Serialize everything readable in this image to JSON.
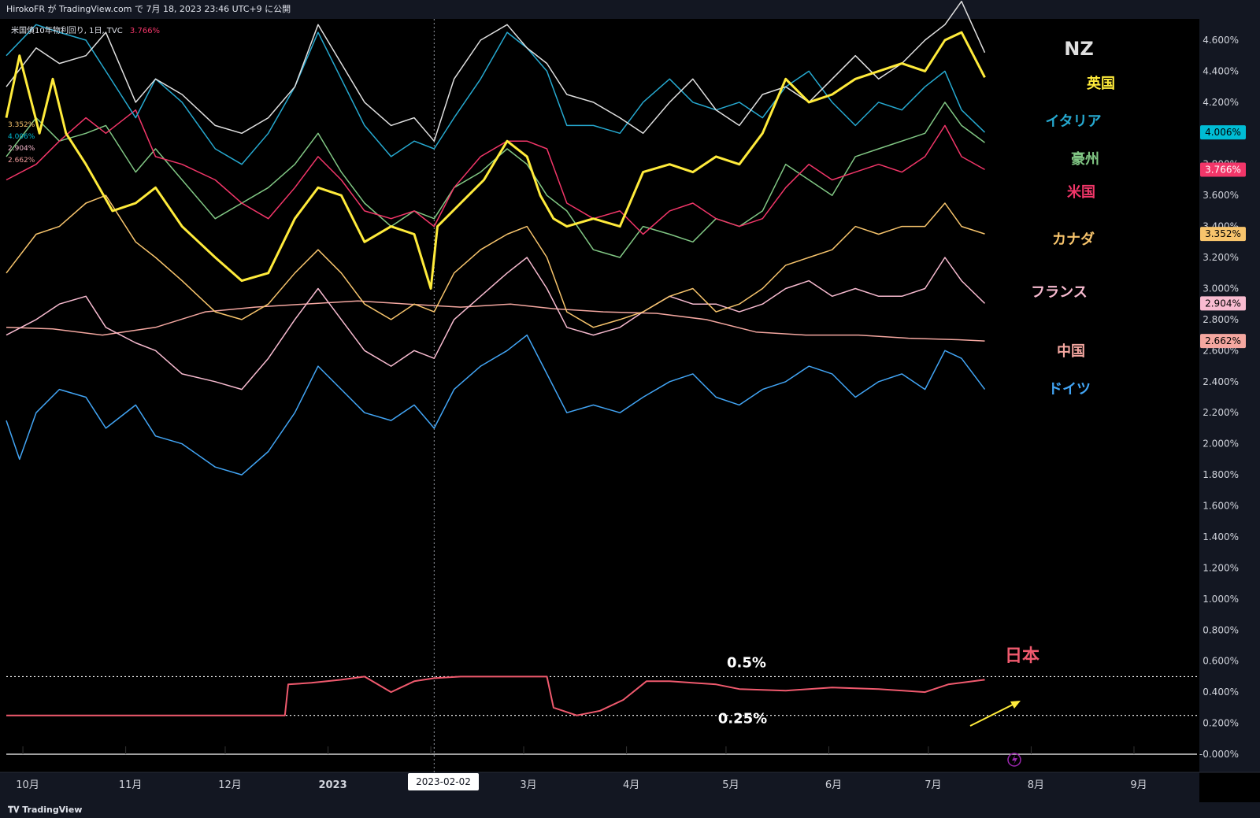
{
  "header": {
    "publisher": "HirokoFR が TradingView.com で 7月 18, 2023 23:46 UTC+9 に公開"
  },
  "legend": {
    "symbol": "米国債10年物利回り, 1日, TVC",
    "value": "3.766%"
  },
  "mini_legend": [
    {
      "text": "3.352%",
      "color": "#f7c46c"
    },
    {
      "text": "4.006%",
      "color": "#00bcd4"
    },
    {
      "text": "2.904%",
      "color": "#f8bbd0"
    },
    {
      "text": "2.662%",
      "color": "#ef9a9a"
    }
  ],
  "crosshair_date": "2023-02-02",
  "footer": {
    "brand": "TradingView"
  },
  "colors": {
    "nz": "#e0e0e0",
    "uk": "#ffeb3b",
    "italy": "#26a9d0",
    "australia": "#81c784",
    "us": "#f23669",
    "canada": "#f7c46c",
    "france": "#f8bbd0",
    "china": "#f4a7a0",
    "germany": "#42a5f5",
    "japan": "#f05a6e"
  },
  "chart_data": {
    "type": "line",
    "title": "米国債10年物利回り, 1日, TVC",
    "xlabel": "",
    "ylabel": "",
    "ylim": [
      -0.05,
      4.85
    ],
    "x_tick_labels": [
      "10月",
      "11月",
      "12月",
      "2023",
      "2月",
      "3月",
      "4月",
      "5月",
      "6月",
      "7月",
      "8月",
      "9月"
    ],
    "x_range": [
      "2022-09-26",
      "2023-09-20"
    ],
    "y_ticks": [
      -0.0,
      0.2,
      0.4,
      0.6,
      0.8,
      1.0,
      1.2,
      1.4,
      1.6,
      1.8,
      2.0,
      2.2,
      2.4,
      2.6,
      2.8,
      3.0,
      3.2,
      3.4,
      3.6,
      3.8,
      4.0,
      4.2,
      4.4,
      4.6
    ],
    "y_tick_labels": [
      "-0.000%",
      "0.200%",
      "0.400%",
      "0.600%",
      "0.800%",
      "1.000%",
      "1.200%",
      "1.400%",
      "1.600%",
      "1.800%",
      "2.000%",
      "2.200%",
      "2.400%",
      "2.600%",
      "2.800%",
      "3.000%",
      "3.200%",
      "3.400%",
      "3.600%",
      "3.800%",
      "4.000%",
      "4.200%",
      "4.400%",
      "4.600%"
    ],
    "price_tags": [
      {
        "label": "4.006%",
        "value": 4.006,
        "bg": "#00bcd4",
        "fg": "#000"
      },
      {
        "label": "3.766%",
        "value": 3.766,
        "bg": "#f23669",
        "fg": "#fff"
      },
      {
        "label": "3.352%",
        "value": 3.352,
        "bg": "#f7c46c",
        "fg": "#000"
      },
      {
        "label": "2.904%",
        "value": 2.904,
        "bg": "#f8bbd0",
        "fg": "#000"
      },
      {
        "label": "2.662%",
        "value": 2.662,
        "bg": "#f4a7a0",
        "fg": "#000"
      }
    ],
    "annotations": {
      "level_05": {
        "text": "0.5%",
        "value": 0.5
      },
      "level_025": {
        "text": "0.25%",
        "value": 0.25
      }
    },
    "series": [
      {
        "key": "nz",
        "name": "NZ",
        "color": "#e0e0e0",
        "width": 1.5,
        "dates": [
          "2022-09-26",
          "2022-10-05",
          "2022-10-12",
          "2022-10-20",
          "2022-10-26",
          "2022-11-04",
          "2022-11-10",
          "2022-11-18",
          "2022-11-28",
          "2022-12-06",
          "2022-12-14",
          "2022-12-22",
          "2022-12-29",
          "2023-01-05",
          "2023-01-12",
          "2023-01-20",
          "2023-01-27",
          "2023-02-02",
          "2023-02-08",
          "2023-02-16",
          "2023-02-24",
          "2023-03-02",
          "2023-03-08",
          "2023-03-14",
          "2023-03-22",
          "2023-03-30",
          "2023-04-06",
          "2023-04-14",
          "2023-04-21",
          "2023-04-28",
          "2023-05-05",
          "2023-05-12",
          "2023-05-19",
          "2023-05-26",
          "2023-06-02",
          "2023-06-09",
          "2023-06-16",
          "2023-06-23",
          "2023-06-30",
          "2023-07-06",
          "2023-07-11",
          "2023-07-18"
        ],
        "values": [
          4.3,
          4.55,
          4.45,
          4.5,
          4.65,
          4.2,
          4.35,
          4.25,
          4.05,
          4.0,
          4.1,
          4.3,
          4.7,
          4.45,
          4.2,
          4.05,
          4.1,
          3.95,
          4.35,
          4.6,
          4.7,
          4.55,
          4.45,
          4.25,
          4.2,
          4.1,
          4.0,
          4.2,
          4.35,
          4.15,
          4.05,
          4.25,
          4.3,
          4.2,
          4.35,
          4.5,
          4.35,
          4.45,
          4.6,
          4.7,
          4.85,
          4.52
        ]
      },
      {
        "key": "uk",
        "name": "英国",
        "color": "#ffeb3b",
        "width": 3,
        "dates": [
          "2022-09-26",
          "2022-09-30",
          "2022-10-06",
          "2022-10-10",
          "2022-10-14",
          "2022-10-20",
          "2022-10-28",
          "2022-11-04",
          "2022-11-10",
          "2022-11-18",
          "2022-11-28",
          "2022-12-06",
          "2022-12-14",
          "2022-12-22",
          "2022-12-29",
          "2023-01-05",
          "2023-01-12",
          "2023-01-20",
          "2023-01-27",
          "2023-02-01",
          "2023-02-03",
          "2023-02-10",
          "2023-02-17",
          "2023-02-24",
          "2023-03-02",
          "2023-03-06",
          "2023-03-10",
          "2023-03-14",
          "2023-03-22",
          "2023-03-30",
          "2023-04-06",
          "2023-04-14",
          "2023-04-21",
          "2023-04-28",
          "2023-05-05",
          "2023-05-12",
          "2023-05-19",
          "2023-05-26",
          "2023-06-02",
          "2023-06-09",
          "2023-06-16",
          "2023-06-23",
          "2023-06-30",
          "2023-07-06",
          "2023-07-11",
          "2023-07-18"
        ],
        "values": [
          4.1,
          4.5,
          4.0,
          4.35,
          4.0,
          3.8,
          3.5,
          3.55,
          3.65,
          3.4,
          3.2,
          3.05,
          3.1,
          3.45,
          3.65,
          3.6,
          3.3,
          3.4,
          3.35,
          3.0,
          3.4,
          3.55,
          3.7,
          3.95,
          3.85,
          3.6,
          3.45,
          3.4,
          3.45,
          3.4,
          3.75,
          3.8,
          3.75,
          3.85,
          3.8,
          4.0,
          4.35,
          4.2,
          4.25,
          4.35,
          4.4,
          4.45,
          4.4,
          4.6,
          4.65,
          4.36
        ]
      },
      {
        "key": "italy",
        "name": "イタリア",
        "color": "#26a9d0",
        "width": 1.5,
        "dates": [
          "2022-09-26",
          "2022-10-05",
          "2022-10-12",
          "2022-10-20",
          "2022-10-26",
          "2022-11-04",
          "2022-11-10",
          "2022-11-18",
          "2022-11-28",
          "2022-12-06",
          "2022-12-14",
          "2022-12-22",
          "2022-12-29",
          "2023-01-05",
          "2023-01-12",
          "2023-01-20",
          "2023-01-27",
          "2023-02-02",
          "2023-02-08",
          "2023-02-16",
          "2023-02-24",
          "2023-03-02",
          "2023-03-08",
          "2023-03-14",
          "2023-03-22",
          "2023-03-30",
          "2023-04-06",
          "2023-04-14",
          "2023-04-21",
          "2023-04-28",
          "2023-05-05",
          "2023-05-12",
          "2023-05-19",
          "2023-05-26",
          "2023-06-02",
          "2023-06-09",
          "2023-06-16",
          "2023-06-23",
          "2023-06-30",
          "2023-07-06",
          "2023-07-11",
          "2023-07-18"
        ],
        "values": [
          4.5,
          4.7,
          4.65,
          4.6,
          4.4,
          4.1,
          4.35,
          4.2,
          3.9,
          3.8,
          4.0,
          4.3,
          4.65,
          4.35,
          4.05,
          3.85,
          3.95,
          3.9,
          4.1,
          4.35,
          4.65,
          4.55,
          4.4,
          4.05,
          4.05,
          4.0,
          4.2,
          4.35,
          4.2,
          4.15,
          4.2,
          4.1,
          4.3,
          4.4,
          4.2,
          4.05,
          4.2,
          4.15,
          4.3,
          4.4,
          4.15,
          4.006
        ]
      },
      {
        "key": "australia",
        "name": "豪州",
        "color": "#81c784",
        "width": 1.5,
        "dates": [
          "2022-09-26",
          "2022-10-05",
          "2022-10-12",
          "2022-10-20",
          "2022-10-26",
          "2022-11-04",
          "2022-11-10",
          "2022-11-18",
          "2022-11-28",
          "2022-12-06",
          "2022-12-14",
          "2022-12-22",
          "2022-12-29",
          "2023-01-05",
          "2023-01-12",
          "2023-01-20",
          "2023-01-27",
          "2023-02-02",
          "2023-02-08",
          "2023-02-16",
          "2023-02-24",
          "2023-03-02",
          "2023-03-08",
          "2023-03-14",
          "2023-03-22",
          "2023-03-30",
          "2023-04-06",
          "2023-04-14",
          "2023-04-21",
          "2023-04-28",
          "2023-05-05",
          "2023-05-12",
          "2023-05-19",
          "2023-05-26",
          "2023-06-02",
          "2023-06-09",
          "2023-06-16",
          "2023-06-23",
          "2023-06-30",
          "2023-07-06",
          "2023-07-11",
          "2023-07-18"
        ],
        "values": [
          3.85,
          4.1,
          3.95,
          4.0,
          4.05,
          3.75,
          3.9,
          3.7,
          3.45,
          3.55,
          3.65,
          3.8,
          4.0,
          3.75,
          3.55,
          3.4,
          3.5,
          3.45,
          3.65,
          3.75,
          3.9,
          3.8,
          3.6,
          3.5,
          3.25,
          3.2,
          3.4,
          3.35,
          3.3,
          3.45,
          3.4,
          3.5,
          3.8,
          3.7,
          3.6,
          3.85,
          3.9,
          3.95,
          4.0,
          4.2,
          4.05,
          3.94
        ]
      },
      {
        "key": "us",
        "name": "米国",
        "color": "#f23669",
        "width": 1.5,
        "dates": [
          "2022-09-26",
          "2022-10-05",
          "2022-10-12",
          "2022-10-20",
          "2022-10-26",
          "2022-11-04",
          "2022-11-10",
          "2022-11-18",
          "2022-11-28",
          "2022-12-06",
          "2022-12-14",
          "2022-12-22",
          "2022-12-29",
          "2023-01-05",
          "2023-01-12",
          "2023-01-20",
          "2023-01-27",
          "2023-02-02",
          "2023-02-08",
          "2023-02-16",
          "2023-02-24",
          "2023-03-02",
          "2023-03-08",
          "2023-03-14",
          "2023-03-22",
          "2023-03-30",
          "2023-04-06",
          "2023-04-14",
          "2023-04-21",
          "2023-04-28",
          "2023-05-05",
          "2023-05-12",
          "2023-05-19",
          "2023-05-26",
          "2023-06-02",
          "2023-06-09",
          "2023-06-16",
          "2023-06-23",
          "2023-06-30",
          "2023-07-06",
          "2023-07-11",
          "2023-07-18"
        ],
        "values": [
          3.7,
          3.8,
          3.95,
          4.1,
          4.0,
          4.15,
          3.85,
          3.8,
          3.7,
          3.55,
          3.45,
          3.65,
          3.85,
          3.7,
          3.5,
          3.45,
          3.5,
          3.4,
          3.65,
          3.85,
          3.95,
          3.95,
          3.9,
          3.55,
          3.45,
          3.5,
          3.35,
          3.5,
          3.55,
          3.45,
          3.4,
          3.45,
          3.65,
          3.8,
          3.7,
          3.75,
          3.8,
          3.75,
          3.85,
          4.05,
          3.85,
          3.766
        ]
      },
      {
        "key": "canada",
        "name": "カナダ",
        "color": "#f7c46c",
        "width": 1.5,
        "dates": [
          "2022-09-26",
          "2022-10-05",
          "2022-10-12",
          "2022-10-20",
          "2022-10-26",
          "2022-11-04",
          "2022-11-10",
          "2022-11-18",
          "2022-11-28",
          "2022-12-06",
          "2022-12-14",
          "2022-12-22",
          "2022-12-29",
          "2023-01-05",
          "2023-01-12",
          "2023-01-20",
          "2023-01-27",
          "2023-02-02",
          "2023-02-08",
          "2023-02-16",
          "2023-02-24",
          "2023-03-02",
          "2023-03-08",
          "2023-03-14",
          "2023-03-22",
          "2023-03-30",
          "2023-04-06",
          "2023-04-14",
          "2023-04-21",
          "2023-04-28",
          "2023-05-05",
          "2023-05-12",
          "2023-05-19",
          "2023-05-26",
          "2023-06-02",
          "2023-06-09",
          "2023-06-16",
          "2023-06-23",
          "2023-06-30",
          "2023-07-06",
          "2023-07-11",
          "2023-07-18"
        ],
        "values": [
          3.1,
          3.35,
          3.4,
          3.55,
          3.6,
          3.3,
          3.2,
          3.05,
          2.85,
          2.8,
          2.9,
          3.1,
          3.25,
          3.1,
          2.9,
          2.8,
          2.9,
          2.85,
          3.1,
          3.25,
          3.35,
          3.4,
          3.2,
          2.85,
          2.75,
          2.8,
          2.85,
          2.95,
          3.0,
          2.85,
          2.9,
          3.0,
          3.15,
          3.2,
          3.25,
          3.4,
          3.35,
          3.4,
          3.4,
          3.55,
          3.4,
          3.352
        ]
      },
      {
        "key": "france",
        "name": "フランス",
        "color": "#f8bbd0",
        "width": 1.5,
        "dates": [
          "2022-09-26",
          "2022-10-05",
          "2022-10-12",
          "2022-10-20",
          "2022-10-26",
          "2022-11-04",
          "2022-11-10",
          "2022-11-18",
          "2022-11-28",
          "2022-12-06",
          "2022-12-14",
          "2022-12-22",
          "2022-12-29",
          "2023-01-05",
          "2023-01-12",
          "2023-01-20",
          "2023-01-27",
          "2023-02-02",
          "2023-02-08",
          "2023-02-16",
          "2023-02-24",
          "2023-03-02",
          "2023-03-08",
          "2023-03-14",
          "2023-03-22",
          "2023-03-30",
          "2023-04-06",
          "2023-04-14",
          "2023-04-21",
          "2023-04-28",
          "2023-05-05",
          "2023-05-12",
          "2023-05-19",
          "2023-05-26",
          "2023-06-02",
          "2023-06-09",
          "2023-06-16",
          "2023-06-23",
          "2023-06-30",
          "2023-07-06",
          "2023-07-11",
          "2023-07-18"
        ],
        "values": [
          2.7,
          2.8,
          2.9,
          2.95,
          2.75,
          2.65,
          2.6,
          2.45,
          2.4,
          2.35,
          2.55,
          2.8,
          3.0,
          2.8,
          2.6,
          2.5,
          2.6,
          2.55,
          2.8,
          2.95,
          3.1,
          3.2,
          3.0,
          2.75,
          2.7,
          2.75,
          2.85,
          2.95,
          2.9,
          2.9,
          2.85,
          2.9,
          3.0,
          3.05,
          2.95,
          3.0,
          2.95,
          2.95,
          3.0,
          3.2,
          3.05,
          2.904
        ]
      },
      {
        "key": "china",
        "name": "中国",
        "color": "#f4a7a0",
        "width": 1.5,
        "dates": [
          "2022-09-26",
          "2022-10-10",
          "2022-10-25",
          "2022-11-10",
          "2022-11-25",
          "2022-12-10",
          "2022-12-25",
          "2023-01-10",
          "2023-01-25",
          "2023-02-10",
          "2023-02-25",
          "2023-03-10",
          "2023-03-25",
          "2023-04-10",
          "2023-04-25",
          "2023-05-10",
          "2023-05-25",
          "2023-06-10",
          "2023-06-25",
          "2023-07-10",
          "2023-07-18"
        ],
        "values": [
          2.75,
          2.74,
          2.7,
          2.75,
          2.85,
          2.88,
          2.9,
          2.92,
          2.9,
          2.88,
          2.9,
          2.87,
          2.85,
          2.84,
          2.8,
          2.72,
          2.7,
          2.7,
          2.68,
          2.67,
          2.662
        ]
      },
      {
        "key": "germany",
        "name": "ドイツ",
        "color": "#42a5f5",
        "width": 1.5,
        "dates": [
          "2022-09-26",
          "2022-09-30",
          "2022-10-05",
          "2022-10-12",
          "2022-10-20",
          "2022-10-26",
          "2022-11-04",
          "2022-11-10",
          "2022-11-18",
          "2022-11-28",
          "2022-12-06",
          "2022-12-14",
          "2022-12-22",
          "2022-12-29",
          "2023-01-05",
          "2023-01-12",
          "2023-01-20",
          "2023-01-27",
          "2023-02-02",
          "2023-02-08",
          "2023-02-16",
          "2023-02-24",
          "2023-03-02",
          "2023-03-08",
          "2023-03-14",
          "2023-03-22",
          "2023-03-30",
          "2023-04-06",
          "2023-04-14",
          "2023-04-21",
          "2023-04-28",
          "2023-05-05",
          "2023-05-12",
          "2023-05-19",
          "2023-05-26",
          "2023-06-02",
          "2023-06-09",
          "2023-06-16",
          "2023-06-23",
          "2023-06-30",
          "2023-07-06",
          "2023-07-11",
          "2023-07-18"
        ],
        "values": [
          2.15,
          1.9,
          2.2,
          2.35,
          2.3,
          2.1,
          2.25,
          2.05,
          2.0,
          1.85,
          1.8,
          1.95,
          2.2,
          2.5,
          2.35,
          2.2,
          2.15,
          2.25,
          2.1,
          2.35,
          2.5,
          2.6,
          2.7,
          2.45,
          2.2,
          2.25,
          2.2,
          2.3,
          2.4,
          2.45,
          2.3,
          2.25,
          2.35,
          2.4,
          2.5,
          2.45,
          2.3,
          2.4,
          2.45,
          2.35,
          2.6,
          2.55,
          2.35
        ]
      },
      {
        "key": "japan",
        "name": "日本",
        "color": "#f05a6e",
        "width": 2,
        "dates": [
          "2022-09-26",
          "2022-12-19",
          "2022-12-20",
          "2022-12-27",
          "2023-01-05",
          "2023-01-12",
          "2023-01-20",
          "2023-01-27",
          "2023-02-02",
          "2023-02-10",
          "2023-02-20",
          "2023-03-01",
          "2023-03-08",
          "2023-03-10",
          "2023-03-17",
          "2023-03-24",
          "2023-03-31",
          "2023-04-07",
          "2023-04-14",
          "2023-04-28",
          "2023-05-05",
          "2023-05-19",
          "2023-06-02",
          "2023-06-16",
          "2023-06-30",
          "2023-07-07",
          "2023-07-18"
        ],
        "values": [
          0.25,
          0.25,
          0.45,
          0.46,
          0.48,
          0.5,
          0.4,
          0.47,
          0.49,
          0.5,
          0.5,
          0.5,
          0.5,
          0.3,
          0.25,
          0.28,
          0.35,
          0.47,
          0.47,
          0.45,
          0.42,
          0.41,
          0.43,
          0.42,
          0.4,
          0.45,
          0.48
        ]
      }
    ]
  }
}
